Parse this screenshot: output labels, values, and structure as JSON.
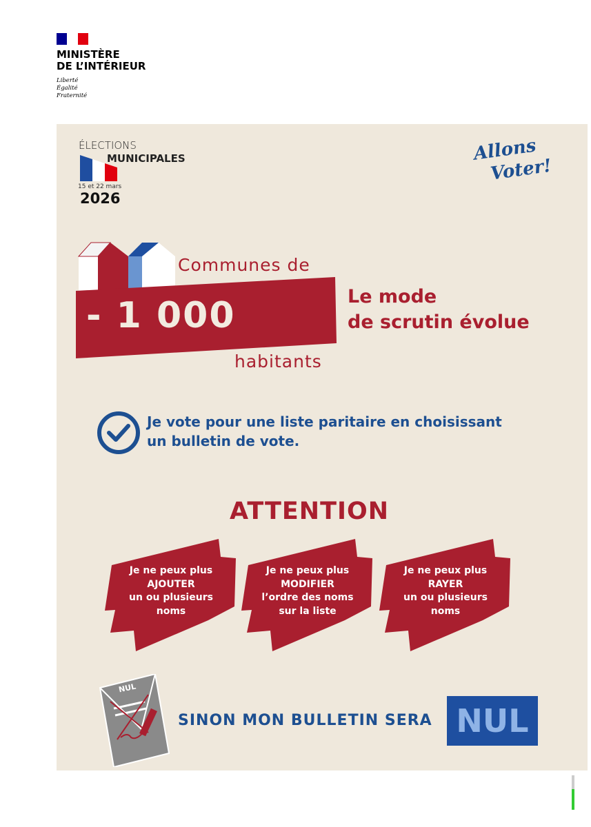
{
  "ministry": {
    "name_line1": "MINISTÈRE",
    "name_line2": "DE L’INTÉRIEUR",
    "motto": [
      "Liberté",
      "Égalité",
      "Fraternité"
    ],
    "flag_colors": [
      "#000091",
      "#ffffff",
      "#e1000f"
    ]
  },
  "election": {
    "line1": "ÉLECTIONS",
    "line2": "MUNICIPALES",
    "dates": "15 et 22 mars",
    "year": "2026"
  },
  "slogan": {
    "line1": "Allons",
    "line2": "Voter!"
  },
  "headline": {
    "communes": "Communes de",
    "number": "- 1 000",
    "habitants": "habitants",
    "mode_line1": "Le mode",
    "mode_line2": "de scrutin évolue"
  },
  "vote_rule": {
    "icon": "check-circle-icon",
    "line1": "Je vote pour une liste paritaire en choisissant",
    "line2": "un bulletin de vote."
  },
  "attention": "ATTENTION",
  "warnings": [
    {
      "lines": [
        "Je ne peux plus",
        "AJOUTER",
        "un ou plusieurs",
        "noms"
      ]
    },
    {
      "lines": [
        "Je ne peux plus",
        "MODIFIER",
        "l’ordre des noms",
        "sur la liste"
      ]
    },
    {
      "lines": [
        "Je ne peux plus",
        "RAYER",
        "un ou plusieurs",
        "noms"
      ]
    }
  ],
  "ballot": {
    "label": "NUL"
  },
  "footer": {
    "text": "SINON MON BULLETIN SERA",
    "nul": "NUL"
  },
  "colors": {
    "red": "#a91f2f",
    "blue": "#1d4f91",
    "beige": "#efe8dc"
  }
}
